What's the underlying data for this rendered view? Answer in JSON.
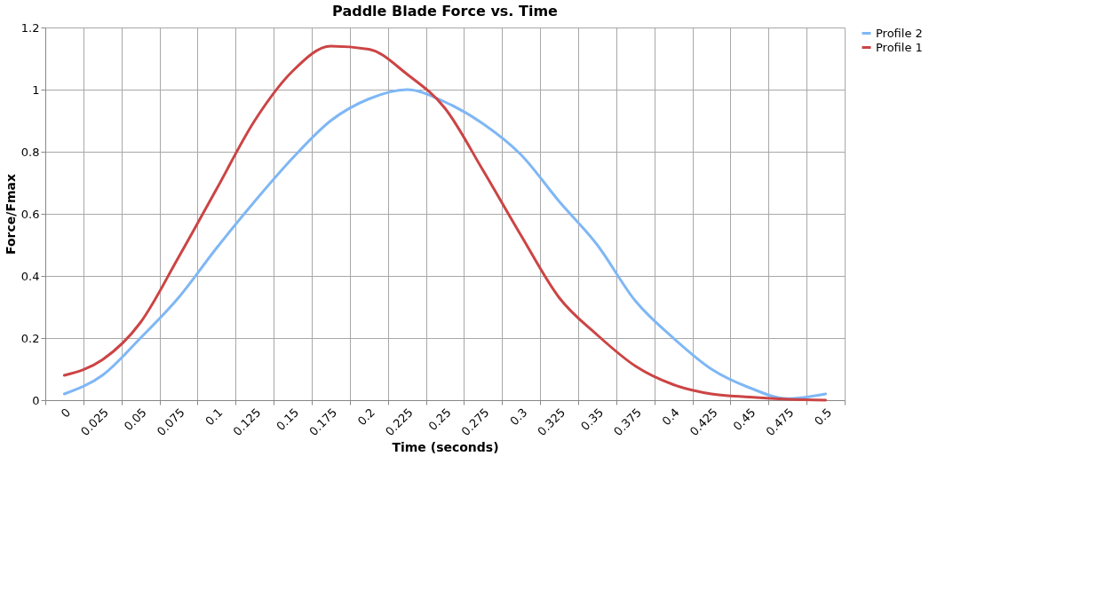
{
  "chart_data": {
    "type": "line",
    "title": "Paddle Blade Force vs. Time",
    "xlabel": "Time (seconds)",
    "ylabel": "Force/Fmax",
    "categories": [
      "0",
      "0.025",
      "0.05",
      "0.075",
      "0.1",
      "0.125",
      "0.15",
      "0.175",
      "0.2",
      "0.225",
      "0.25",
      "0.275",
      "0.3",
      "0.325",
      "0.35",
      "0.375",
      "0.4",
      "0.425",
      "0.45",
      "0.475",
      "0.5"
    ],
    "series": [
      {
        "name": "Profile 2",
        "color": "#7fb7f5",
        "values": [
          0.02,
          0.08,
          0.2,
          0.33,
          0.49,
          0.64,
          0.78,
          0.9,
          0.97,
          1.0,
          0.96,
          0.89,
          0.79,
          0.64,
          0.5,
          0.32,
          0.2,
          0.1,
          0.04,
          0.005,
          0.02
        ]
      },
      {
        "name": "Profile 1",
        "color": "#cc4444",
        "values": [
          0.08,
          0.13,
          0.25,
          0.46,
          0.68,
          0.9,
          1.06,
          1.14,
          1.13,
          1.05,
          0.94,
          0.74,
          0.53,
          0.33,
          0.21,
          0.11,
          0.05,
          0.02,
          0.01,
          0.003,
          0.0
        ]
      }
    ],
    "ylim": [
      0,
      1.2
    ],
    "yticks": [
      0,
      0.2,
      0.4,
      0.6,
      0.8,
      1,
      1.2
    ],
    "grid": true,
    "legend": "right",
    "line_style": "solid"
  }
}
